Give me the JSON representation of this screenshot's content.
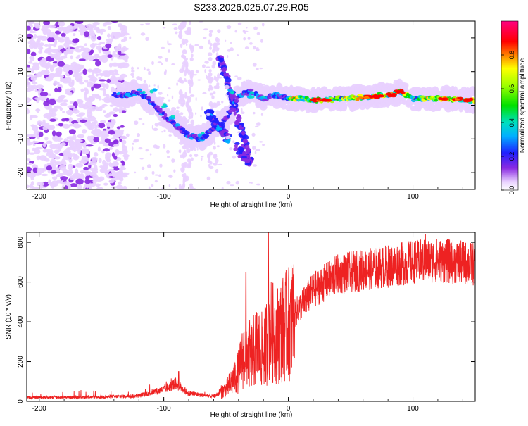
{
  "title": "S233.2026.025.07.29.R05",
  "chart_data": [
    {
      "type": "heatmap",
      "xlabel": "Height of straight line (km)",
      "ylabel": "Frequency (Hz)",
      "xlim": [
        -210,
        150
      ],
      "ylim": [
        -25,
        25
      ],
      "x_ticks": [
        -200,
        -100,
        0,
        100
      ],
      "y_ticks": [
        -20,
        -10,
        0,
        10,
        20
      ],
      "colorbar": {
        "label": "Normalized spectral amplitude",
        "range": [
          0,
          1
        ],
        "ticks": [
          "0.0",
          "0.2",
          "0.4",
          "0.6",
          "0.8"
        ]
      },
      "ridge": [
        {
          "x": -140,
          "y": 3
        },
        {
          "x": -130,
          "y": 3
        },
        {
          "x": -120,
          "y": 4
        },
        {
          "x": -110,
          "y": 1
        },
        {
          "x": -100,
          "y": -3
        },
        {
          "x": -90,
          "y": -6
        },
        {
          "x": -80,
          "y": -9
        },
        {
          "x": -70,
          "y": -10
        },
        {
          "x": -60,
          "y": -7
        },
        {
          "x": -50,
          "y": -4
        },
        {
          "x": -40,
          "y": 3
        },
        {
          "x": -30,
          "y": 4
        },
        {
          "x": -20,
          "y": 2
        },
        {
          "x": -10,
          "y": 3
        },
        {
          "x": 0,
          "y": 2
        },
        {
          "x": 10,
          "y": 2
        },
        {
          "x": 20,
          "y": 1.5
        },
        {
          "x": 40,
          "y": 1.8
        },
        {
          "x": 60,
          "y": 2.5
        },
        {
          "x": 80,
          "y": 3
        },
        {
          "x": 90,
          "y": 4
        },
        {
          "x": 100,
          "y": 2
        },
        {
          "x": 120,
          "y": 2
        },
        {
          "x": 150,
          "y": 1.5
        }
      ]
    },
    {
      "type": "line",
      "xlabel": "Height of straight line (km)",
      "ylabel": "SNR (10 * v/v)",
      "xlim": [
        -210,
        150
      ],
      "ylim": [
        0,
        850
      ],
      "x_ticks": [
        -200,
        -100,
        0,
        100
      ],
      "y_ticks": [
        0,
        200,
        400,
        600,
        800
      ],
      "envelope": [
        {
          "x": -210,
          "y": 20
        },
        {
          "x": -150,
          "y": 22
        },
        {
          "x": -120,
          "y": 28
        },
        {
          "x": -100,
          "y": 60
        },
        {
          "x": -90,
          "y": 90
        },
        {
          "x": -80,
          "y": 40
        },
        {
          "x": -60,
          "y": 25
        },
        {
          "x": -50,
          "y": 60
        },
        {
          "x": -40,
          "y": 150
        },
        {
          "x": -35,
          "y": 250
        },
        {
          "x": -30,
          "y": 230
        },
        {
          "x": -25,
          "y": 280
        },
        {
          "x": -20,
          "y": 250
        },
        {
          "x": -15,
          "y": 360
        },
        {
          "x": -10,
          "y": 330
        },
        {
          "x": -5,
          "y": 360
        },
        {
          "x": 0,
          "y": 390
        },
        {
          "x": 5,
          "y": 440
        },
        {
          "x": 10,
          "y": 480
        },
        {
          "x": 20,
          "y": 560
        },
        {
          "x": 30,
          "y": 600
        },
        {
          "x": 40,
          "y": 640
        },
        {
          "x": 60,
          "y": 660
        },
        {
          "x": 80,
          "y": 680
        },
        {
          "x": 100,
          "y": 700
        },
        {
          "x": 120,
          "y": 710
        },
        {
          "x": 150,
          "y": 690
        }
      ],
      "spikes": [
        {
          "x": -16,
          "y": 850
        },
        {
          "x": -34,
          "y": 650
        },
        {
          "x": -88,
          "y": 150
        },
        {
          "x": 110,
          "y": 840
        }
      ]
    }
  ]
}
